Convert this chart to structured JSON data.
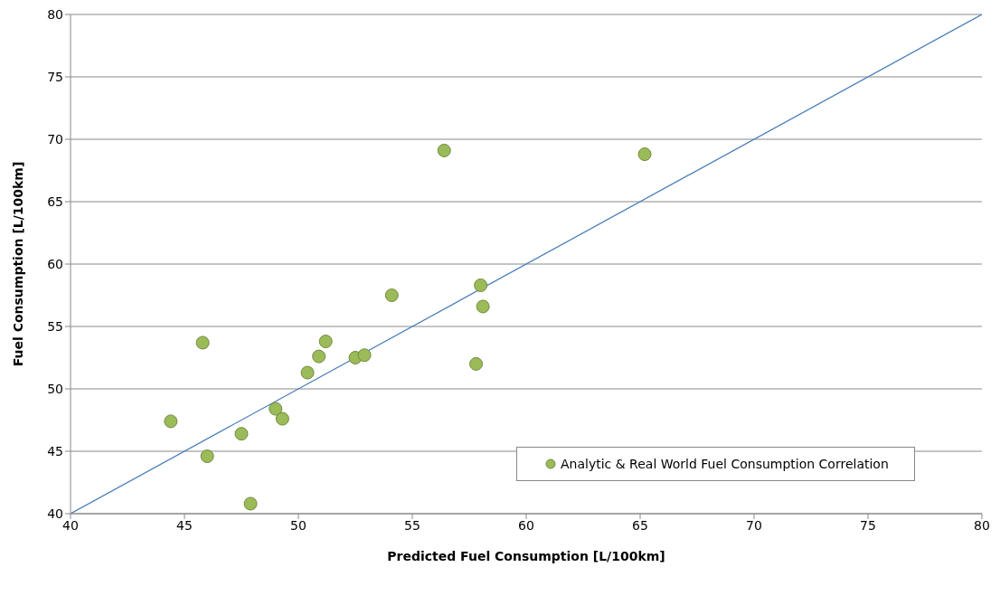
{
  "chart_data": {
    "type": "scatter",
    "xlabel": "Predicted Fuel Consumption [L/100km]",
    "ylabel": "Fuel Consumption [L/100km]",
    "xlim": [
      40,
      80
    ],
    "xticks": [
      40,
      45,
      50,
      55,
      60,
      65,
      70,
      75,
      80
    ],
    "ylim": [
      40,
      80
    ],
    "yticks": [
      40,
      45,
      50,
      55,
      60,
      65,
      70,
      75,
      80
    ],
    "grid": "y",
    "legend": "bottom right",
    "marker": "circle",
    "series": [
      {
        "name": "Analytic & Real World Fuel Consumption Correlation",
        "color": "#9bbb59",
        "x": [
          44.4,
          45.8,
          46.0,
          47.5,
          47.9,
          49.0,
          49.3,
          50.4,
          50.9,
          51.2,
          52.5,
          52.9,
          54.1,
          56.4,
          57.8,
          58.0,
          58.1,
          65.2
        ],
        "values": [
          47.4,
          53.7,
          44.6,
          46.4,
          40.8,
          48.4,
          47.6,
          51.3,
          52.6,
          53.8,
          52.5,
          52.7,
          57.5,
          69.1,
          52.0,
          58.3,
          56.6,
          68.8
        ]
      },
      {
        "type": "line",
        "color": "#4a7ebb",
        "x": [
          40,
          80
        ],
        "values": [
          40,
          80
        ],
        "marker": "none",
        "line_style": "solid"
      }
    ]
  }
}
